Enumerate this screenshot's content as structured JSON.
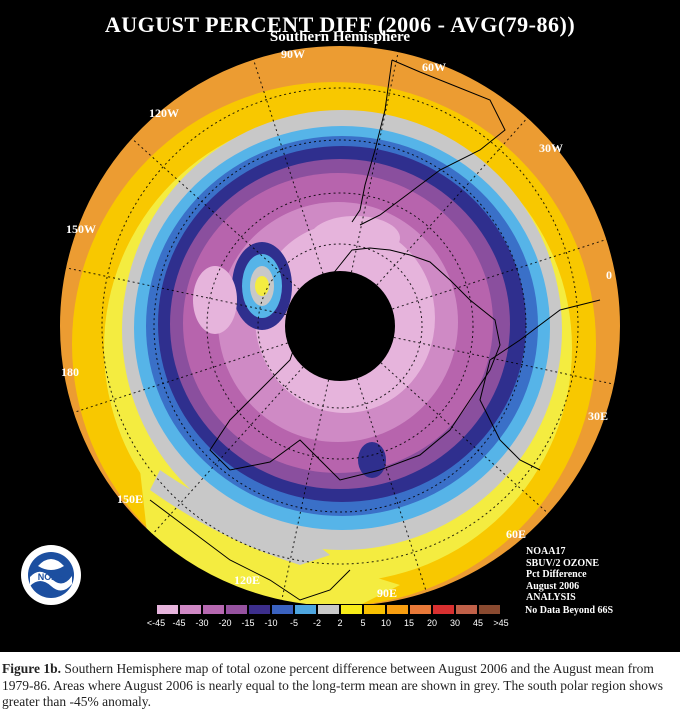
{
  "title": "AUGUST PERCENT DIFF (2006 - AVG(79-86))",
  "subtitle": "Southern Hemisphere",
  "longitude_labels": [
    "90W",
    "60W",
    "30W",
    "0",
    "30E",
    "60E",
    "90E",
    "120E",
    "150E",
    "180",
    "150W",
    "120W"
  ],
  "info_lines": [
    "NOAA17",
    "SBUV/2 OZONE",
    "Pct Difference",
    "August 2006",
    "ANALYSIS"
  ],
  "legend": {
    "labels": [
      "<-45",
      "-45",
      "-30",
      "-20",
      "-15",
      "-10",
      "-5",
      "-2",
      "2",
      "5",
      "10",
      "15",
      "20",
      "30",
      "45",
      ">45"
    ],
    "colors": [
      "#e6b4dc",
      "#cf88c4",
      "#b668b0",
      "#96529f",
      "#3c2e8c",
      "#3a62c0",
      "#4ea6e0",
      "#c8c8c8",
      "#f8ec18",
      "#f8c000",
      "#f89e10",
      "#e87838",
      "#d83030",
      "#c06048",
      "#8a4a30"
    ],
    "no_data_note": "No Data Beyond 66S"
  },
  "logo_text": "NOAA",
  "colors": {
    "background": "#000000",
    "ring_outer": "#ec9c32"
  },
  "caption": {
    "label": "Figure 1b.",
    "text": " Southern Hemisphere map of total ozone percent difference between August 2006 and the August mean from 1979-86.  Areas where August 2006 is nearly equal to the long-term mean are shown in grey.  The south polar region shows greater than -45% anomaly."
  }
}
